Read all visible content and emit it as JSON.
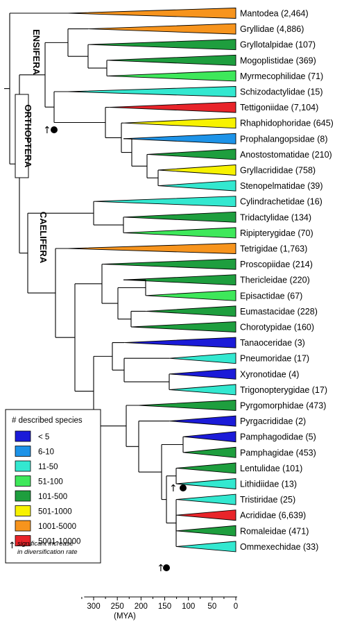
{
  "clades": [
    {
      "name": "Mantodea (2,464)",
      "color": "#f7941d"
    },
    {
      "name": "Gryllidae (4,886)",
      "color": "#f7941d"
    },
    {
      "name": "Gryllotalpidae (107)",
      "color": "#1e9e3e"
    },
    {
      "name": "Mogoplistidae (369)",
      "color": "#1e9e3e"
    },
    {
      "name": "Myrmecophilidae (71)",
      "color": "#3ee85a"
    },
    {
      "name": "Schizodactylidae (15)",
      "color": "#33e8d0"
    },
    {
      "name": "Tettigoniidae (7,104)",
      "color": "#e8242a"
    },
    {
      "name": "Rhaphidophoridae (645)",
      "color": "#f7f200"
    },
    {
      "name": "Prophalangopsidae (8)",
      "color": "#1d93e8"
    },
    {
      "name": "Anostostomatidae (210)",
      "color": "#1e9e3e"
    },
    {
      "name": "Gryllacrididae (758)",
      "color": "#f7f200"
    },
    {
      "name": "Stenopelmatidae (39)",
      "color": "#33e8d0"
    },
    {
      "name": "Cylindrachetidae (16)",
      "color": "#33e8d0"
    },
    {
      "name": "Tridactylidae (134)",
      "color": "#1e9e3e"
    },
    {
      "name": "Ripipterygidae (70)",
      "color": "#3ee85a"
    },
    {
      "name": "Tetrigidae (1,763)",
      "color": "#f7941d"
    },
    {
      "name": "Proscopiidae (214)",
      "color": "#1e9e3e"
    },
    {
      "name": "Thericleidae (220)",
      "color": "#1e9e3e"
    },
    {
      "name": "Episactidae (67)",
      "color": "#3ee85a"
    },
    {
      "name": "Eumastacidae (228)",
      "color": "#1e9e3e"
    },
    {
      "name": "Chorotypidae (160)",
      "color": "#1e9e3e"
    },
    {
      "name": "Tanaoceridae (3)",
      "color": "#1b1bd8"
    },
    {
      "name": "Pneumoridae (17)",
      "color": "#33e8d0"
    },
    {
      "name": "Xyronotidae (4)",
      "color": "#1b1bd8"
    },
    {
      "name": "Trigonopterygidae (17)",
      "color": "#33e8d0"
    },
    {
      "name": "Pyrgomorphidae (473)",
      "color": "#1e9e3e"
    },
    {
      "name": "Pyrgacrididae (2)",
      "color": "#1b1bd8"
    },
    {
      "name": "Pamphagodidae (5)",
      "color": "#1b1bd8"
    },
    {
      "name": "Pamphagidae (453)",
      "color": "#1e9e3e"
    },
    {
      "name": "Lentulidae (101)",
      "color": "#1e9e3e"
    },
    {
      "name": "Lithidiidae (13)",
      "color": "#33e8d0"
    },
    {
      "name": "Tristiridae (25)",
      "color": "#33e8d0"
    },
    {
      "name": "Acrididae (6,639)",
      "color": "#e8242a"
    },
    {
      "name": "Romaleidae (471)",
      "color": "#1e9e3e"
    },
    {
      "name": "Ommexechidae (33)",
      "color": "#33e8d0"
    }
  ],
  "group_labels": {
    "orthoptera": "ORTHOPTERA",
    "ensifera": "ENSIFERA",
    "caelifera": "CAELIFERA"
  },
  "axis": {
    "ticks": [
      "300",
      "250",
      "200",
      "150",
      "100",
      "50",
      "0"
    ],
    "unit": "(MYA)"
  },
  "legend": {
    "title": "# described species",
    "items": [
      {
        "label": "< 5",
        "color": "#1b1bd8"
      },
      {
        "label": "6-10",
        "color": "#1d93e8"
      },
      {
        "label": "11-50",
        "color": "#33e8d0"
      },
      {
        "label": "51-100",
        "color": "#3ee85a"
      },
      {
        "label": "101-500",
        "color": "#1e9e3e"
      },
      {
        "label": "501-1000",
        "color": "#f7f200"
      },
      {
        "label": "1001-5000",
        "color": "#f7941d"
      },
      {
        "label": "5001-10000",
        "color": "#e8242a"
      }
    ],
    "note_line1": "significant increase",
    "note_line2": "in diversification rate"
  }
}
